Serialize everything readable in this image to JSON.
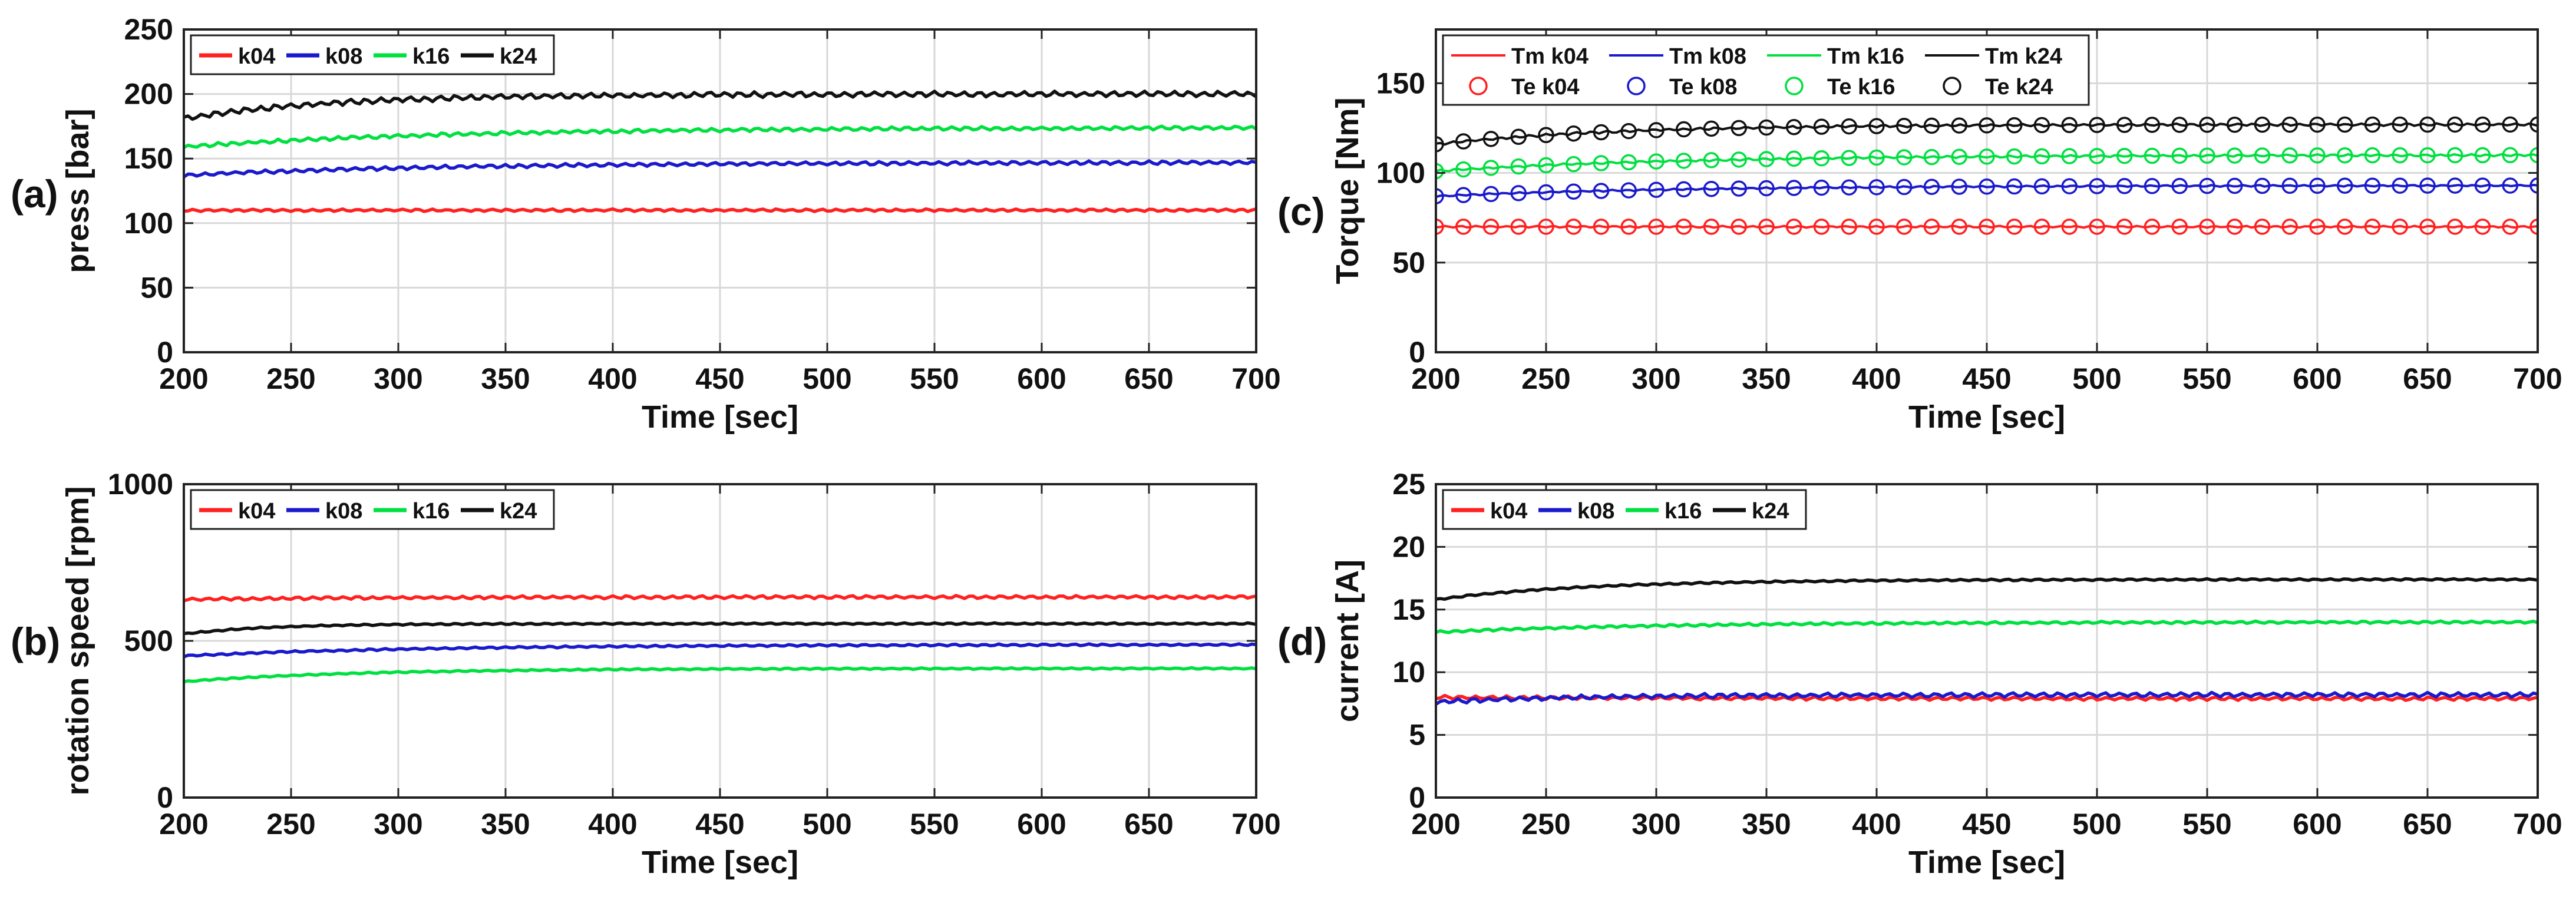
{
  "chart_data": [
    {
      "id": "a",
      "type": "line",
      "panel_label": "(a)",
      "xlabel": "Time [sec]",
      "ylabel": "press [bar]",
      "xlim": [
        200,
        700
      ],
      "ylim": [
        0,
        250
      ],
      "xticks": [
        200,
        250,
        300,
        350,
        400,
        450,
        500,
        550,
        600,
        650,
        700
      ],
      "yticks": [
        0,
        50,
        100,
        150,
        200,
        250
      ],
      "grid": true,
      "legend": {
        "placement": "top-left",
        "columns": 4
      },
      "series": [
        {
          "name": "k04",
          "color": "#ff2020",
          "start": 110,
          "end": 110,
          "tau": 120,
          "ripple": 0.8
        },
        {
          "name": "k08",
          "color": "#1a1acc",
          "start": 137,
          "end": 147,
          "tau": 120,
          "ripple": 1.2
        },
        {
          "name": "k16",
          "color": "#00e040",
          "start": 159,
          "end": 174,
          "tau": 120,
          "ripple": 1.2
        },
        {
          "name": "k24",
          "color": "#111111",
          "start": 181,
          "end": 200,
          "tau": 70,
          "ripple": 1.8
        }
      ]
    },
    {
      "id": "b",
      "type": "line",
      "panel_label": "(b)",
      "xlabel": "Time [sec]",
      "ylabel": "rotation speed [rpm]",
      "xlim": [
        200,
        700
      ],
      "ylim": [
        0,
        1000
      ],
      "xticks": [
        200,
        250,
        300,
        350,
        400,
        450,
        500,
        550,
        600,
        650,
        700
      ],
      "yticks": [
        0,
        500,
        1000
      ],
      "grid": true,
      "legend": {
        "placement": "top-left",
        "columns": 4
      },
      "series": [
        {
          "name": "k04",
          "color": "#ff2020",
          "start": 632,
          "end": 640,
          "tau": 80,
          "ripple": 4
        },
        {
          "name": "k08",
          "color": "#1a1acc",
          "start": 452,
          "end": 488,
          "tau": 110,
          "ripple": 2.5
        },
        {
          "name": "k16",
          "color": "#00e040",
          "start": 370,
          "end": 412,
          "tau": 80,
          "ripple": 2
        },
        {
          "name": "k24",
          "color": "#111111",
          "start": 522,
          "end": 555,
          "tau": 40,
          "ripple": 2
        }
      ]
    },
    {
      "id": "c",
      "type": "line",
      "panel_label": "(c)",
      "xlabel": "Time [sec]",
      "ylabel": "Torque [Nm]",
      "xlim": [
        200,
        700
      ],
      "ylim": [
        0,
        180
      ],
      "xticks": [
        200,
        250,
        300,
        350,
        400,
        450,
        500,
        550,
        600,
        650,
        700
      ],
      "yticks": [
        0,
        50,
        100,
        150
      ],
      "grid": true,
      "legend": {
        "placement": "top-left",
        "columns": 4
      },
      "series": [
        {
          "name": "Tm k04",
          "color": "#ff2020",
          "style": "line",
          "start": 70,
          "end": 70,
          "tau": 100,
          "ripple": 0.4
        },
        {
          "name": "Tm k08",
          "color": "#1a1acc",
          "style": "line",
          "start": 87,
          "end": 93,
          "tau": 110,
          "ripple": 0.4
        },
        {
          "name": "Tm k16",
          "color": "#00e040",
          "style": "line",
          "start": 101,
          "end": 110,
          "tau": 110,
          "ripple": 0.5
        },
        {
          "name": "Tm k24",
          "color": "#111111",
          "style": "line",
          "start": 116,
          "end": 127,
          "tau": 80,
          "ripple": 0.6
        },
        {
          "name": "Te k04",
          "color": "#ff2020",
          "style": "marker",
          "start": 70,
          "end": 70,
          "tau": 100,
          "ripple": 0
        },
        {
          "name": "Te k08",
          "color": "#1a1acc",
          "style": "marker",
          "start": 87,
          "end": 93,
          "tau": 110,
          "ripple": 0
        },
        {
          "name": "Te k16",
          "color": "#00e040",
          "style": "marker",
          "start": 101,
          "end": 110,
          "tau": 110,
          "ripple": 0
        },
        {
          "name": "Te k24",
          "color": "#111111",
          "style": "marker",
          "start": 116,
          "end": 127,
          "tau": 80,
          "ripple": 0
        }
      ]
    },
    {
      "id": "d",
      "type": "line",
      "panel_label": "(d)",
      "xlabel": "Time [sec]",
      "ylabel": "current [A]",
      "xlim": [
        200,
        700
      ],
      "ylim": [
        0,
        25
      ],
      "xticks": [
        200,
        250,
        300,
        350,
        400,
        450,
        500,
        550,
        600,
        650,
        700
      ],
      "yticks": [
        0,
        5,
        10,
        15,
        20,
        25
      ],
      "grid": true,
      "legend": {
        "placement": "top-left",
        "columns": 4
      },
      "series": [
        {
          "name": "k04",
          "color": "#ff2020",
          "start": 8.0,
          "end": 7.9,
          "tau": 100,
          "ripple": 0.12
        },
        {
          "name": "k08",
          "color": "#1a1acc",
          "start": 7.6,
          "end": 8.2,
          "tau": 60,
          "ripple": 0.15
        },
        {
          "name": "k16",
          "color": "#00e040",
          "start": 13.2,
          "end": 14.0,
          "tau": 100,
          "ripple": 0.08
        },
        {
          "name": "k24",
          "color": "#111111",
          "start": 15.8,
          "end": 17.4,
          "tau": 70,
          "ripple": 0.06
        }
      ]
    }
  ]
}
